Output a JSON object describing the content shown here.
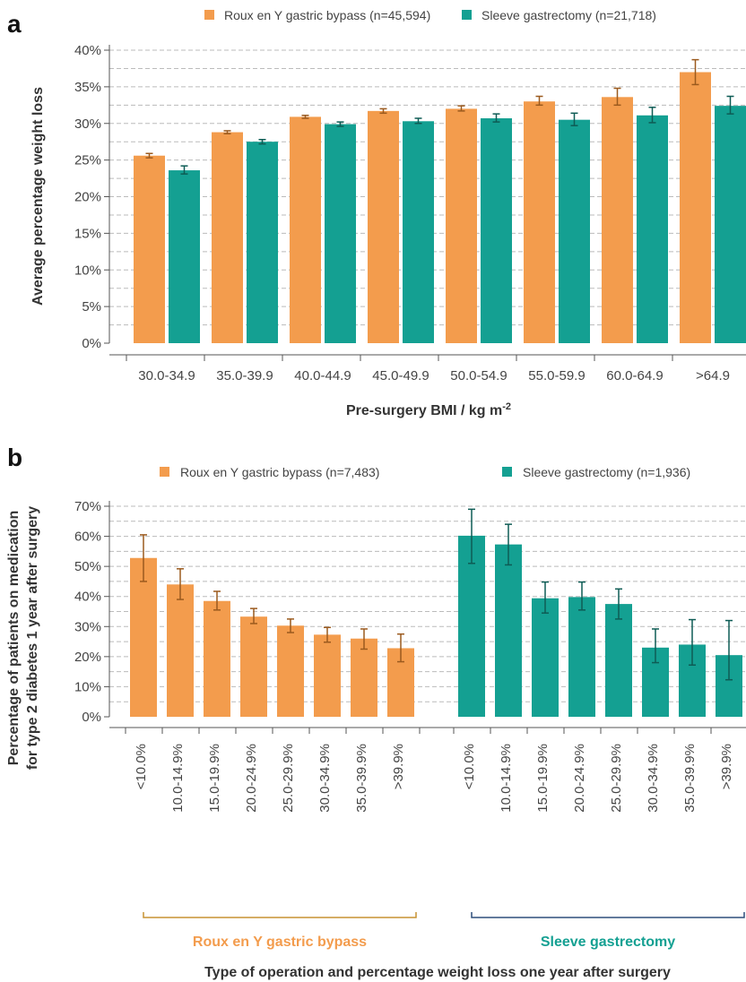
{
  "colors": {
    "bypass": "#F39C4D",
    "sleeve": "#14A092",
    "bypass_err": "#9B5A1E",
    "sleeve_err": "#0E5C55",
    "bracket_bypass": "#C79232",
    "bracket_sleeve": "#2E4F7C",
    "grid": "#BBBBBB"
  },
  "chart_data": [
    {
      "type": "bar",
      "panel": "a",
      "ylabel": "Average percentage weight loss",
      "xlabel": "Pre-surgery BMI / kg m",
      "xlabel_sup": "-2",
      "ylim": [
        0,
        40
      ],
      "yticks": [
        "0%",
        "5%",
        "10%",
        "15%",
        "20%",
        "25%",
        "30%",
        "35%",
        "40%"
      ],
      "grid": "dashed",
      "legend_position": "top",
      "categories": [
        "30.0-34.9",
        "35.0-39.9",
        "40.0-44.9",
        "45.0-49.9",
        "50.0-54.9",
        "55.0-59.9",
        "60.0-64.9",
        ">64.9"
      ],
      "series": [
        {
          "name": "Roux en Y gastric bypass (n=45,594)",
          "values": [
            25.6,
            28.8,
            30.9,
            31.7,
            32.0,
            33.0,
            33.6,
            37.0
          ],
          "err_low": [
            25.3,
            28.6,
            30.7,
            31.4,
            31.7,
            32.5,
            32.5,
            35.3
          ],
          "err_high": [
            25.9,
            29.0,
            31.1,
            32.0,
            32.4,
            33.7,
            34.8,
            38.7
          ]
        },
        {
          "name": "Sleeve gastrectomy (n=21,718)",
          "values": [
            23.6,
            27.5,
            29.9,
            30.3,
            30.7,
            30.5,
            31.1,
            32.4
          ],
          "err_low": [
            23.1,
            27.2,
            29.6,
            30.0,
            30.2,
            29.7,
            30.1,
            31.3
          ],
          "err_high": [
            24.2,
            27.8,
            30.2,
            30.7,
            31.3,
            31.4,
            32.2,
            33.7
          ]
        }
      ]
    },
    {
      "type": "bar",
      "panel": "b",
      "ylabel_lines": [
        "Percentage of patients on medication",
        "for type 2 diabetes 1 year after surgery"
      ],
      "xlabel": "Type of operation and percentage weight loss one year after surgery",
      "ylim": [
        0,
        70
      ],
      "yticks": [
        "0%",
        "10%",
        "20%",
        "30%",
        "40%",
        "50%",
        "60%",
        "70%"
      ],
      "grid": "dashed",
      "legend_position": "top",
      "categories": [
        "<10.0%",
        "10.0-14.9%",
        "15.0-19.9%",
        "20.0-24.9%",
        "25.0-29.9%",
        "30.0-34.9%",
        "35.0-39.9%",
        ">39.9%"
      ],
      "series": [
        {
          "name": "Roux en Y gastric bypass (n=7,483)",
          "group_label": "Roux en Y gastric bypass",
          "values": [
            52.8,
            44.0,
            38.5,
            33.3,
            30.3,
            27.3,
            26.0,
            22.8
          ],
          "err_low": [
            45.0,
            39.0,
            35.5,
            31.0,
            28.0,
            24.8,
            22.5,
            18.3
          ],
          "err_high": [
            60.5,
            49.2,
            41.7,
            36.0,
            32.5,
            29.7,
            29.2,
            27.5
          ]
        },
        {
          "name": "Sleeve gastrectomy (n=1,936)",
          "group_label": "Sleeve gastrectomy",
          "values": [
            60.2,
            57.3,
            39.4,
            39.8,
            37.5,
            23.0,
            24.0,
            20.5
          ],
          "err_low": [
            51.0,
            50.5,
            34.5,
            35.5,
            32.5,
            18.0,
            17.2,
            12.3
          ],
          "err_high": [
            69.0,
            64.0,
            44.8,
            44.8,
            42.5,
            29.2,
            32.3,
            32.0
          ]
        }
      ]
    }
  ]
}
